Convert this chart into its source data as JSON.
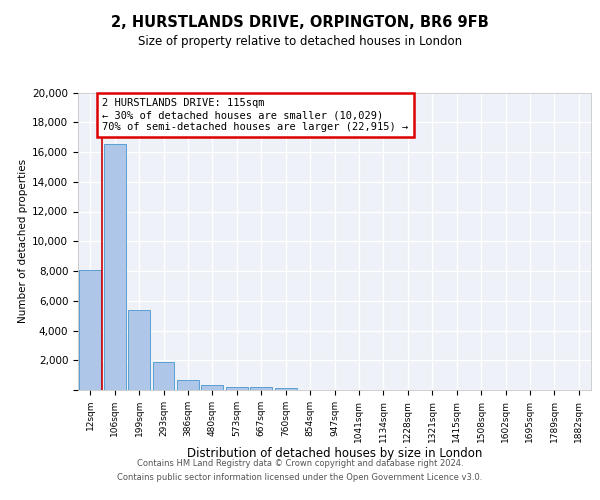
{
  "title_line1": "2, HURSTLANDS DRIVE, ORPINGTON, BR6 9FB",
  "title_line2": "Size of property relative to detached houses in London",
  "xlabel": "Distribution of detached houses by size in London",
  "ylabel": "Number of detached properties",
  "bar_labels": [
    "12sqm",
    "106sqm",
    "199sqm",
    "293sqm",
    "386sqm",
    "480sqm",
    "573sqm",
    "667sqm",
    "760sqm",
    "854sqm",
    "947sqm",
    "1041sqm",
    "1134sqm",
    "1228sqm",
    "1321sqm",
    "1415sqm",
    "1508sqm",
    "1602sqm",
    "1695sqm",
    "1789sqm",
    "1882sqm"
  ],
  "bar_values": [
    8050,
    16550,
    5350,
    1850,
    700,
    320,
    210,
    180,
    130,
    0,
    0,
    0,
    0,
    0,
    0,
    0,
    0,
    0,
    0,
    0,
    0
  ],
  "bar_color": "#aec6e8",
  "bar_edge_color": "#5a9fd4",
  "annotation_text": "2 HURSTLANDS DRIVE: 115sqm\n← 30% of detached houses are smaller (10,029)\n70% of semi-detached houses are larger (22,915) →",
  "annotation_box_color": "#dd0000",
  "vline_x": 1.0,
  "vline_color": "#cc0000",
  "ylim": [
    0,
    20000
  ],
  "yticks": [
    0,
    2000,
    4000,
    6000,
    8000,
    10000,
    12000,
    14000,
    16000,
    18000,
    20000
  ],
  "footer_line1": "Contains HM Land Registry data © Crown copyright and database right 2024.",
  "footer_line2": "Contains public sector information licensed under the Open Government Licence v3.0.",
  "bg_color": "#eef2f8",
  "fig_color": "#ffffff"
}
